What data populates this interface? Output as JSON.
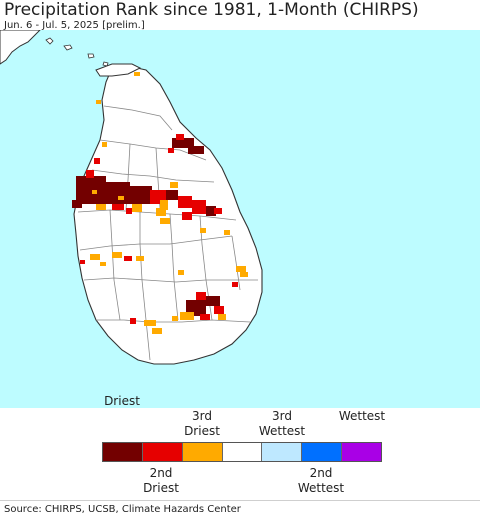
{
  "header": {
    "title": "Precipitation Rank since 1981, 1-Month (CHIRPS)",
    "subtitle": "Jun. 6 - Jul. 5, 2025 [prelim.]"
  },
  "map": {
    "water_color": "#bdfcff",
    "land_color": "#ffffff",
    "border_color": "#333333",
    "district_line_color": "#888888"
  },
  "legend": {
    "top_labels": [
      {
        "line1": "",
        "line2": "Driest"
      },
      {
        "line1": "3rd",
        "line2": "Driest"
      },
      {
        "line1": "3rd",
        "line2": "Wettest"
      },
      {
        "line1": "",
        "line2": "Wettest"
      }
    ],
    "bottom_labels": [
      {
        "line1": "2nd",
        "line2": "Driest"
      },
      {
        "line1": "2nd",
        "line2": "Wettest"
      }
    ],
    "colors": [
      {
        "name": "driest",
        "hex": "#730000"
      },
      {
        "name": "2nd-driest",
        "hex": "#e60000"
      },
      {
        "name": "3rd-driest",
        "hex": "#ffaa00"
      },
      {
        "name": "normal",
        "hex": "#ffffff"
      },
      {
        "name": "3rd-wettest",
        "hex": "#bee8ff"
      },
      {
        "name": "2nd-wettest",
        "hex": "#0070ff"
      },
      {
        "name": "wettest",
        "hex": "#a900e6"
      }
    ]
  },
  "footer": {
    "source": "Source: CHIRPS, UCSB, Climate Hazards Center"
  }
}
